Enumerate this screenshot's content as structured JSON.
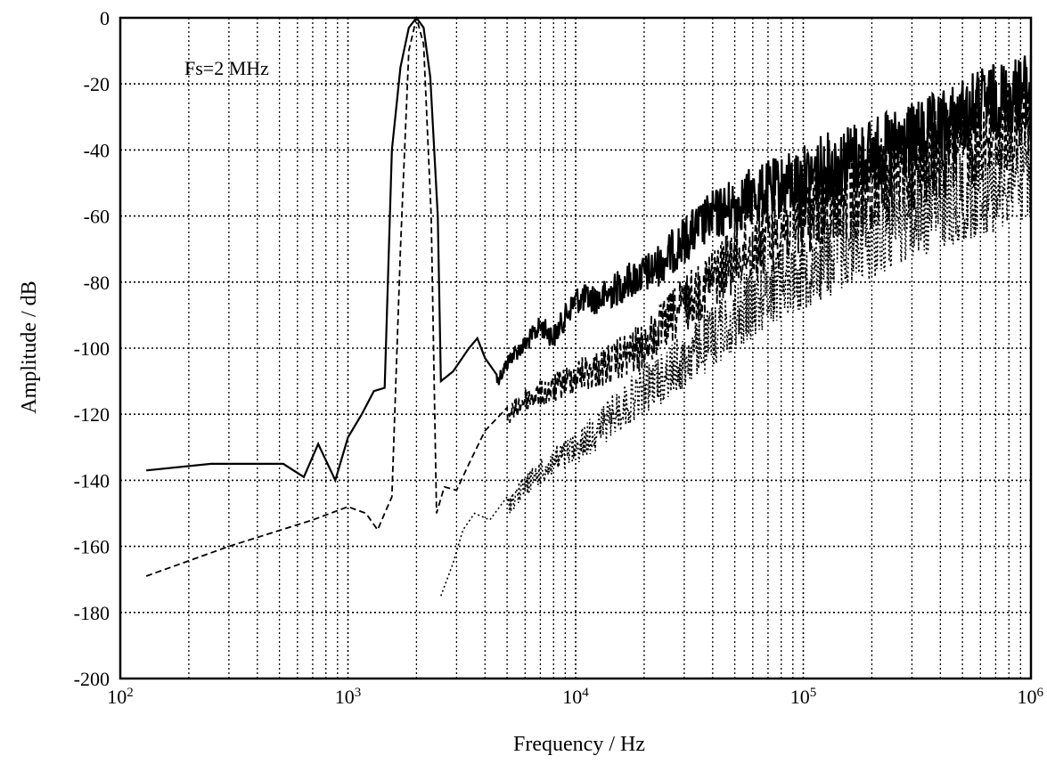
{
  "chart_data": {
    "type": "line",
    "title": "",
    "annotation": "Fs=2 MHz",
    "xlabel": "Frequency / Hz",
    "ylabel": "Amplitude / dB",
    "xscale": "log",
    "xlim": [
      100,
      1000000
    ],
    "ylim": [
      -200,
      0
    ],
    "grid": true,
    "x_tick_labels": [
      {
        "base": "10",
        "exp": "2",
        "value": 100
      },
      {
        "base": "10",
        "exp": "3",
        "value": 1000
      },
      {
        "base": "10",
        "exp": "4",
        "value": 10000
      },
      {
        "base": "10",
        "exp": "5",
        "value": 100000
      },
      {
        "base": "10",
        "exp": "6",
        "value": 1000000
      }
    ],
    "y_ticks": [
      0,
      -20,
      -40,
      -60,
      -80,
      -100,
      -120,
      -140,
      -160,
      -180,
      -200
    ],
    "series": [
      {
        "style": "solid",
        "points": [
          [
            130,
            -137
          ],
          [
            250,
            -135
          ],
          [
            520,
            -135
          ],
          [
            640,
            -139
          ],
          [
            740,
            -129
          ],
          [
            880,
            -140
          ],
          [
            1000,
            -127
          ],
          [
            1150,
            -120
          ],
          [
            1300,
            -113
          ],
          [
            1450,
            -112
          ],
          [
            1560,
            -40
          ],
          [
            1700,
            -15
          ],
          [
            1850,
            -3
          ],
          [
            2000,
            0
          ],
          [
            2150,
            -3
          ],
          [
            2300,
            -18
          ],
          [
            2480,
            -60
          ],
          [
            2560,
            -110
          ],
          [
            2900,
            -107
          ],
          [
            3400,
            -100
          ],
          [
            3700,
            -97
          ],
          [
            4000,
            -103
          ],
          [
            4500,
            -108
          ],
          [
            5200,
            -100
          ],
          [
            6000,
            -96
          ],
          [
            7000,
            -90
          ],
          [
            8000,
            -93
          ],
          [
            10000,
            -81
          ],
          [
            13000,
            -80
          ],
          [
            17000,
            -74
          ],
          [
            22000,
            -70
          ],
          [
            30000,
            -60
          ],
          [
            40000,
            -52
          ],
          [
            60000,
            -45
          ],
          [
            90000,
            -40
          ],
          [
            150000,
            -32
          ],
          [
            250000,
            -28
          ],
          [
            400000,
            -22
          ],
          [
            600000,
            -15
          ],
          [
            1000000,
            -10
          ]
        ]
      },
      {
        "style": "dashed",
        "points": [
          [
            130,
            -169
          ],
          [
            300,
            -160
          ],
          [
            700,
            -152
          ],
          [
            1000,
            -148
          ],
          [
            1200,
            -150
          ],
          [
            1350,
            -155
          ],
          [
            1450,
            -150
          ],
          [
            1560,
            -145
          ],
          [
            1700,
            -70
          ],
          [
            1850,
            -10
          ],
          [
            2000,
            0
          ],
          [
            2150,
            -8
          ],
          [
            2320,
            -60
          ],
          [
            2450,
            -150
          ],
          [
            2650,
            -142
          ],
          [
            3000,
            -143
          ],
          [
            3400,
            -135
          ],
          [
            4000,
            -125
          ],
          [
            5000,
            -118
          ],
          [
            6000,
            -112
          ],
          [
            8000,
            -108
          ],
          [
            10000,
            -103
          ],
          [
            13000,
            -100
          ],
          [
            20000,
            -92
          ],
          [
            30000,
            -78
          ],
          [
            50000,
            -62
          ],
          [
            100000,
            -47
          ],
          [
            200000,
            -36
          ],
          [
            400000,
            -27
          ],
          [
            1000000,
            -17
          ]
        ]
      },
      {
        "style": "dotted",
        "points": [
          [
            2560,
            -175
          ],
          [
            2900,
            -165
          ],
          [
            3200,
            -155
          ],
          [
            3600,
            -150
          ],
          [
            4200,
            -152
          ],
          [
            5000,
            -145
          ],
          [
            6000,
            -138
          ],
          [
            8000,
            -130
          ],
          [
            10000,
            -125
          ],
          [
            12000,
            -120
          ],
          [
            15000,
            -113
          ],
          [
            20000,
            -105
          ],
          [
            30000,
            -95
          ],
          [
            50000,
            -80
          ],
          [
            80000,
            -67
          ],
          [
            150000,
            -55
          ],
          [
            300000,
            -45
          ],
          [
            600000,
            -38
          ],
          [
            1000000,
            -32
          ]
        ]
      }
    ]
  }
}
